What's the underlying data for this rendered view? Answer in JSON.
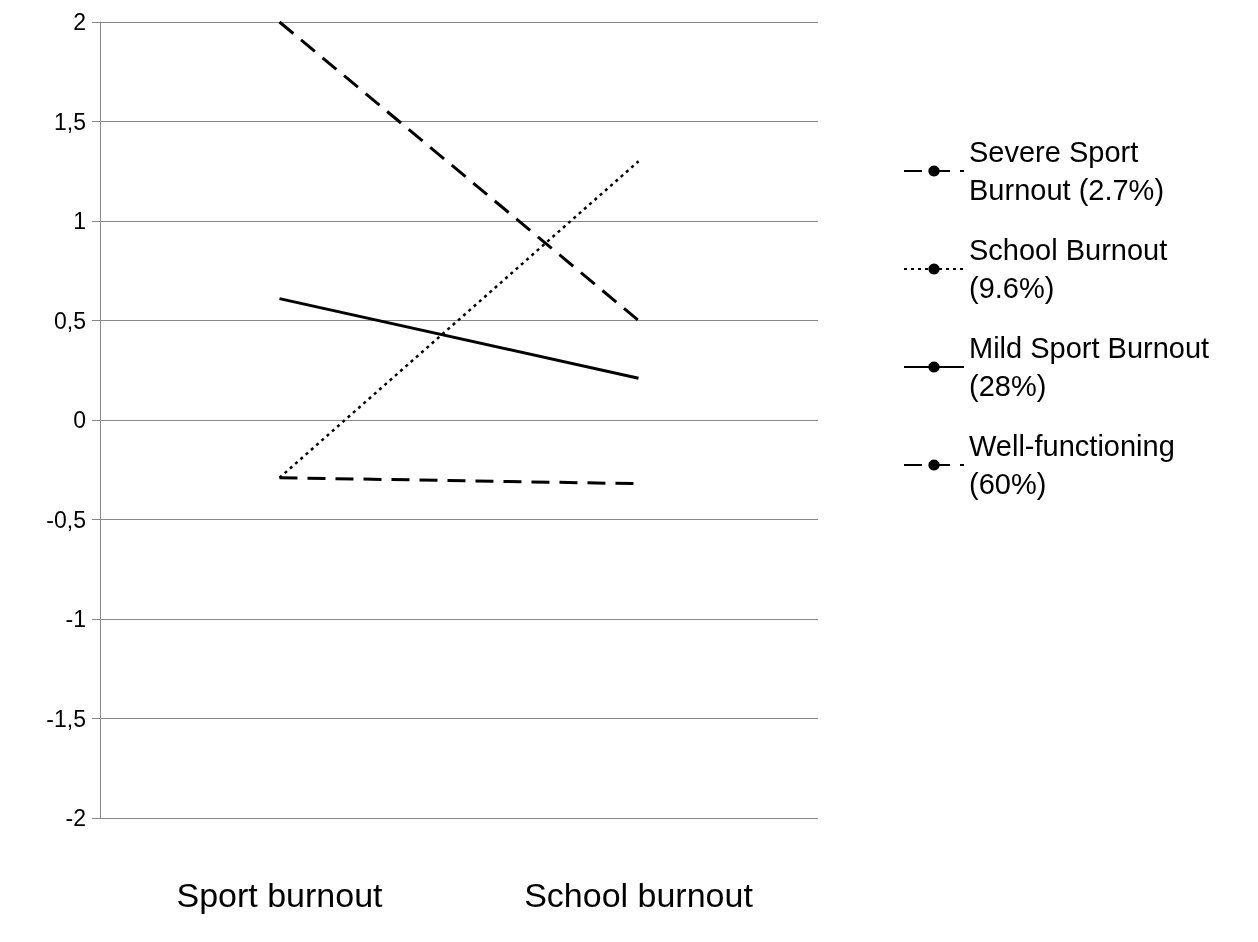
{
  "chart_data": {
    "type": "line",
    "categories": [
      "Sport burnout",
      "School burnout"
    ],
    "series": [
      {
        "name": "Severe Sport Burnout (2.7%)",
        "color": "#000000",
        "line_style": "dashed",
        "values": [
          2,
          0.5
        ]
      },
      {
        "name": "School Burnout (9.6%)",
        "color": "#000000",
        "line_style": "dotted",
        "values": [
          -0.29,
          1.3
        ]
      },
      {
        "name": "Mild Sport Burnout (28%)",
        "color": "#000000",
        "line_style": "solid",
        "values": [
          0.61,
          0.21
        ]
      },
      {
        "name": "Well-functioning (60%)",
        "color": "#000000",
        "line_style": "dashed",
        "values": [
          -0.29,
          -0.32
        ]
      }
    ],
    "ylim": [
      -2,
      2
    ],
    "yticks": [
      -2,
      {
        "value": -1.5,
        "label": "-1,5"
      },
      -1,
      {
        "value": -0.5,
        "label": "-0,5"
      },
      0,
      {
        "value": 0.5,
        "label": "0,5"
      },
      1,
      {
        "value": 1.5,
        "label": "1,5"
      },
      2
    ],
    "grid": "y",
    "legend": "right",
    "marker": "none"
  }
}
